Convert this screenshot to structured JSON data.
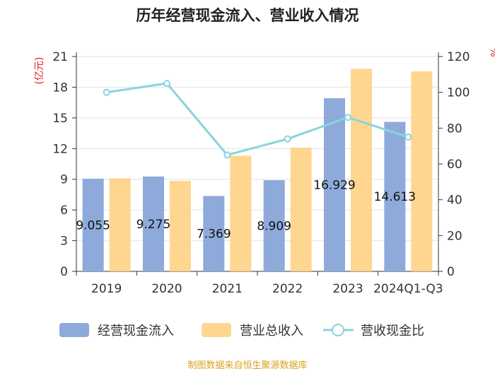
{
  "chart_data": {
    "type": "bar",
    "title": "历年经营现金流入、营业收入情况",
    "categories": [
      "2019",
      "2020",
      "2021",
      "2022",
      "2023",
      "2024Q1-Q3"
    ],
    "series": [
      {
        "name": "经营现金流入",
        "kind": "bar",
        "axis": "left",
        "values": [
          9.055,
          9.275,
          7.369,
          8.909,
          16.929,
          14.613
        ],
        "labels": [
          "9.055",
          "9.275",
          "7.369",
          "8.909",
          "16.929",
          "14.613"
        ]
      },
      {
        "name": "营业总收入",
        "kind": "bar",
        "axis": "left",
        "values": [
          9.1,
          8.85,
          11.3,
          12.1,
          19.8,
          19.55
        ]
      },
      {
        "name": "营收现金比",
        "kind": "line",
        "axis": "right",
        "values": [
          100,
          105,
          65,
          74,
          86,
          75
        ]
      }
    ],
    "y_left": {
      "label": "(亿元)",
      "ylim": [
        0,
        21
      ],
      "ticks": [
        0,
        3,
        6,
        9,
        12,
        15,
        18,
        21
      ]
    },
    "y_right": {
      "label": "%",
      "ylim": [
        0,
        120
      ],
      "ticks": [
        0,
        20,
        40,
        60,
        80,
        100,
        120
      ]
    },
    "legend_position": "bottom",
    "grid": true
  },
  "colors": {
    "cash": "#8eaadb",
    "revenue": "#ffd68f",
    "ratio": "#86d5dc",
    "axis_label": "#e02020",
    "source": "#d9a21b"
  },
  "source_text": "制图数据来自恒生聚源数据库"
}
